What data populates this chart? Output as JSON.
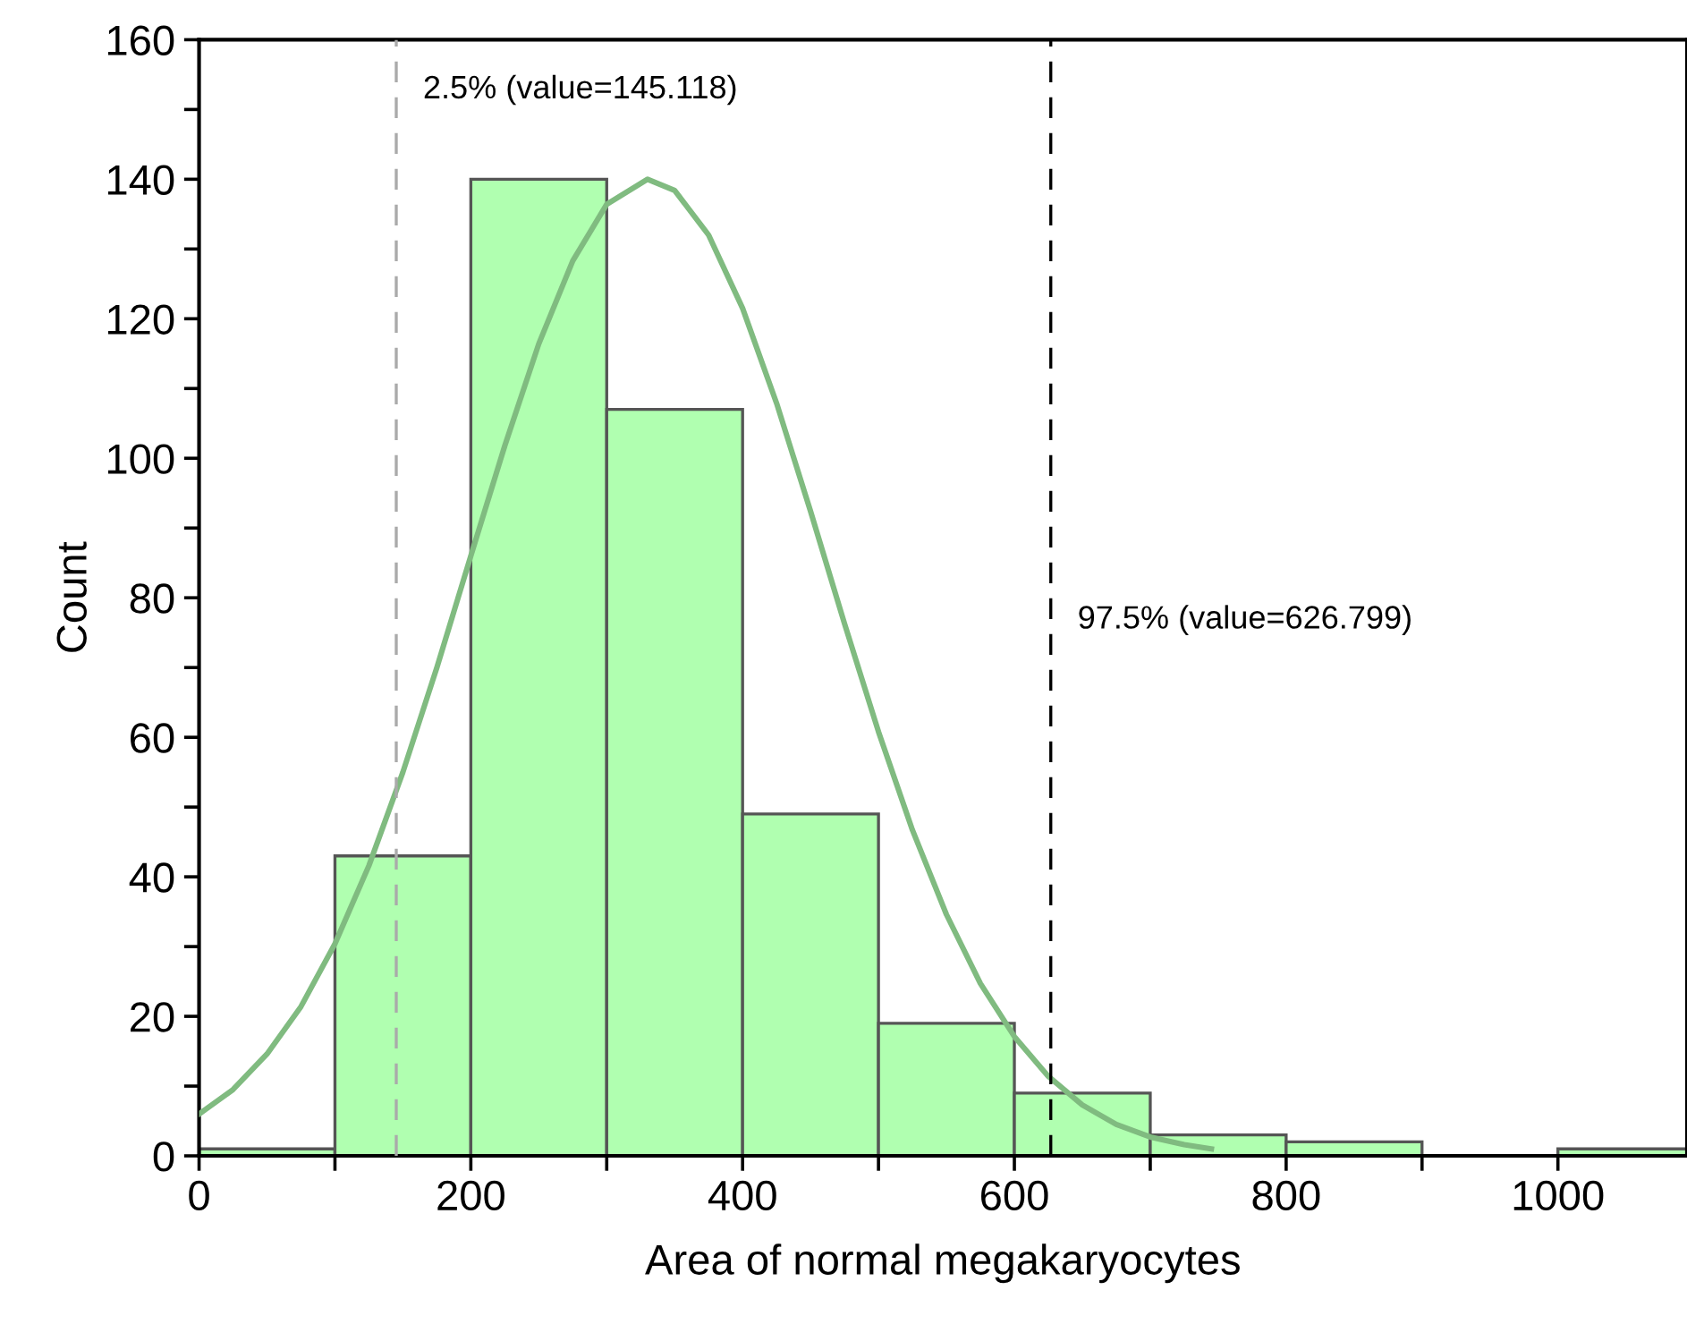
{
  "chart_data": {
    "type": "histogram",
    "xlabel": "Area of normal megakaryocytes",
    "ylabel": "Count",
    "bins": [
      0,
      100,
      200,
      300,
      400,
      500,
      600,
      700,
      800,
      900,
      1000,
      1100
    ],
    "series": [
      {
        "color": "#b0ffb0",
        "values": [
          1,
          43,
          140,
          107,
          49,
          19,
          9,
          3,
          2,
          0,
          1
        ]
      },
      {
        "type": "line",
        "color": "#80bb80",
        "marker": "none",
        "line_style": "solid",
        "x": [
          0,
          25,
          50,
          75,
          100,
          125,
          150,
          175,
          200,
          225,
          250,
          275,
          300,
          330,
          350,
          375,
          400,
          425,
          450,
          475,
          500,
          525,
          550,
          575,
          600,
          625,
          650,
          675,
          700,
          725,
          745
        ],
        "values": [
          6.0,
          9.5,
          14.6,
          21.4,
          30.4,
          41.6,
          55.0,
          70.0,
          86.0,
          101.8,
          116.4,
          128.3,
          136.4,
          140.0,
          138.4,
          132.0,
          121.5,
          107.9,
          92.4,
          76.3,
          60.8,
          46.7,
          34.6,
          24.7,
          17.1,
          11.4,
          7.3,
          4.5,
          2.7,
          1.6,
          1.0
        ]
      }
    ],
    "ref_lines": [
      {
        "axis": "x",
        "value": 145.118,
        "label": "2.5% (value=145.118)",
        "color": "#aaaaaa",
        "line_style": "dashed"
      },
      {
        "axis": "x",
        "value": 626.799,
        "label": "97.5% (value=626.799)",
        "color": "#000000",
        "line_style": "dashed"
      }
    ],
    "xlim": [
      0,
      1095
    ],
    "ylim": [
      0,
      160
    ],
    "xticks": [
      0,
      {
        "value": 100,
        "label": null
      },
      200,
      {
        "value": 300,
        "label": null
      },
      400,
      {
        "value": 500,
        "label": null
      },
      600,
      {
        "value": 700,
        "label": null
      },
      800,
      {
        "value": 900,
        "label": null
      },
      1000
    ],
    "yticks": [
      0,
      {
        "value": 10,
        "label": null
      },
      20,
      {
        "value": 30,
        "label": null
      },
      40,
      {
        "value": 50,
        "label": null
      },
      60,
      {
        "value": 70,
        "label": null
      },
      80,
      {
        "value": 90,
        "label": null
      },
      100,
      {
        "value": 110,
        "label": null
      },
      120,
      {
        "value": 130,
        "label": null
      },
      140,
      {
        "value": 150,
        "label": null
      },
      160
    ],
    "grid": false,
    "legend": false
  }
}
